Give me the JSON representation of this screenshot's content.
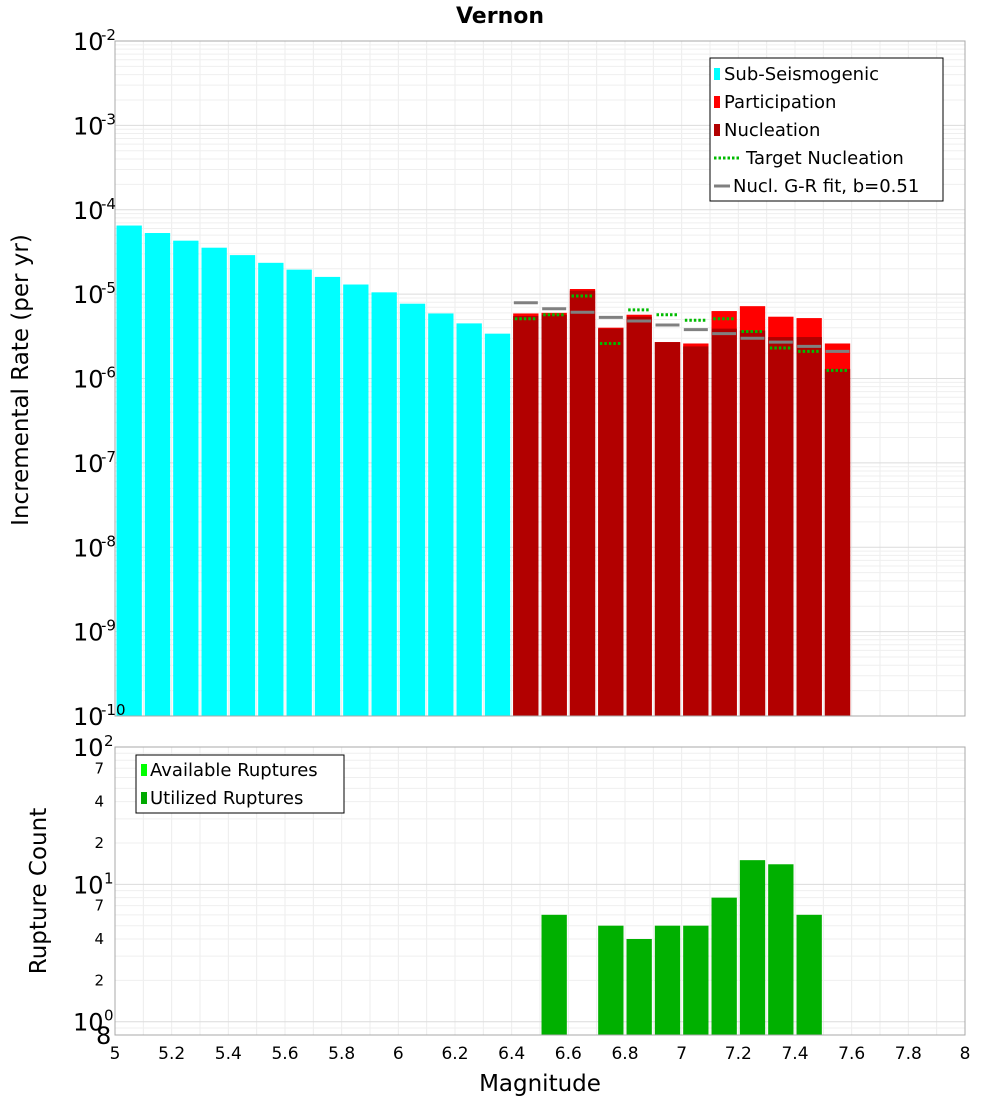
{
  "chart_data": [
    {
      "type": "bar",
      "title": "Vernon",
      "ylabel": "Incremental Rate (per yr)",
      "y_scale": "log",
      "ylim": [
        1e-10,
        0.01
      ],
      "xlim": [
        5,
        8
      ],
      "grid": true,
      "legend_placement": "top-right",
      "y_ticks": [
        {
          "base": "10",
          "exp": "-2"
        },
        {
          "base": "10",
          "exp": "-3"
        },
        {
          "base": "10",
          "exp": "-4"
        },
        {
          "base": "10",
          "exp": "-5"
        },
        {
          "base": "10",
          "exp": "-6"
        },
        {
          "base": "10",
          "exp": "-7"
        },
        {
          "base": "10",
          "exp": "-8"
        },
        {
          "base": "10",
          "exp": "-9"
        },
        {
          "base": "10",
          "exp": "-10"
        }
      ],
      "legend": [
        {
          "label": "Sub-Seismogenic",
          "color": "#00ffff",
          "kind": "box"
        },
        {
          "label": "Participation",
          "color": "#ff0000",
          "kind": "box"
        },
        {
          "label": "Nucleation",
          "color": "#b20000",
          "kind": "box"
        },
        {
          "label": "Target Nucleation",
          "color": "#00bb00",
          "kind": "dotted"
        },
        {
          "label": "Nucl. G-R fit, b=0.51",
          "color": "#808080",
          "kind": "line"
        }
      ],
      "series": [
        {
          "name": "Sub-Seismogenic",
          "color": "#00ffff",
          "x": [
            5.05,
            5.15,
            5.25,
            5.35,
            5.45,
            5.55,
            5.65,
            5.75,
            5.85,
            5.95,
            6.05,
            6.15,
            6.25,
            6.35
          ],
          "values": [
            6.5e-05,
            5.3e-05,
            4.3e-05,
            3.55e-05,
            2.9e-05,
            2.35e-05,
            1.95e-05,
            1.6e-05,
            1.3e-05,
            1.05e-05,
            7.7e-06,
            5.9e-06,
            4.5e-06,
            3.4e-06
          ]
        },
        {
          "name": "Participation",
          "color": "#ff0000",
          "x": [
            6.45,
            6.55,
            6.65,
            6.75,
            6.85,
            6.95,
            7.05,
            7.15,
            7.25,
            7.35,
            7.45,
            7.55
          ],
          "values": [
            5.9e-06,
            6e-06,
            1.15e-05,
            4e-06,
            5.7e-06,
            2.7e-06,
            2.6e-06,
            6.3e-06,
            7.2e-06,
            5.4e-06,
            5.2e-06,
            2.6e-06
          ]
        },
        {
          "name": "Nucleation",
          "color": "#b20000",
          "x": [
            6.45,
            6.55,
            6.65,
            6.75,
            6.85,
            6.95,
            7.05,
            7.15,
            7.25,
            7.35,
            7.45,
            7.55
          ],
          "values": [
            5.5e-06,
            5.7e-06,
            1.1e-05,
            3.9e-06,
            5.4e-06,
            2.7e-06,
            2.4e-06,
            3.9e-06,
            3.7e-06,
            3.1e-06,
            3.1e-06,
            1.3e-06
          ]
        },
        {
          "name": "Target Nucleation",
          "color": "#00bb00",
          "x": [
            6.45,
            6.55,
            6.65,
            6.75,
            6.85,
            6.95,
            7.05,
            7.15,
            7.25,
            7.35,
            7.45,
            7.55
          ],
          "values": [
            5.1e-06,
            5.7e-06,
            9.5e-06,
            2.6e-06,
            6.5e-06,
            5.7e-06,
            4.9e-06,
            5.1e-06,
            3.6e-06,
            2.3e-06,
            2.1e-06,
            1.25e-06
          ]
        },
        {
          "name": "Nucl. G-R fit, b=0.51",
          "color": "#808080",
          "x": [
            6.45,
            6.55,
            6.65,
            6.75,
            6.85,
            6.95,
            7.05,
            7.15,
            7.25,
            7.35,
            7.45,
            7.55
          ],
          "values": [
            7.9e-06,
            6.7e-06,
            6.1e-06,
            5.3e-06,
            4.8e-06,
            4.3e-06,
            3.8e-06,
            3.4e-06,
            3e-06,
            2.7e-06,
            2.4e-06,
            2.1e-06
          ]
        }
      ]
    },
    {
      "type": "bar",
      "xlabel": "Magnitude",
      "ylabel": "Rupture Count",
      "y_scale": "log",
      "ylim": [
        0.8,
        100
      ],
      "xlim": [
        5,
        8
      ],
      "grid": true,
      "legend_placement": "top-left",
      "x_ticks": [
        "5",
        "5.2",
        "5.4",
        "5.6",
        "5.8",
        "6",
        "6.2",
        "6.4",
        "6.6",
        "6.8",
        "7",
        "7.2",
        "7.4",
        "7.6",
        "7.8",
        "8"
      ],
      "y_major_ticks": [
        {
          "base": "10",
          "exp": "2"
        },
        {
          "base": "10",
          "exp": "1"
        },
        {
          "base": "10",
          "exp": "0"
        }
      ],
      "y_minor_tick_labels": [
        "7",
        "4",
        "2",
        "7",
        "4",
        "2",
        "8"
      ],
      "legend": [
        {
          "label": "Available Ruptures",
          "color": "#00ff00",
          "kind": "box"
        },
        {
          "label": "Utilized Ruptures",
          "color": "#00aa00",
          "kind": "box"
        }
      ],
      "series": [
        {
          "name": "Utilized Ruptures",
          "color": "#00b000",
          "x": [
            6.55,
            6.75,
            6.85,
            6.95,
            7.05,
            7.15,
            7.25,
            7.35,
            7.45
          ],
          "values": [
            6,
            5,
            4,
            5,
            5,
            8,
            15,
            14,
            6
          ]
        }
      ]
    }
  ]
}
